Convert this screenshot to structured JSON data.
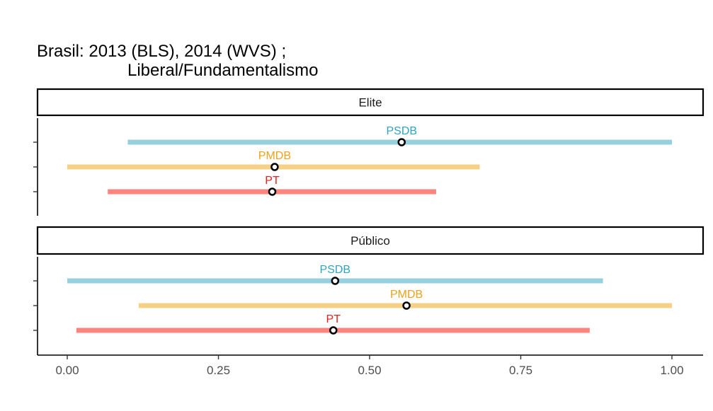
{
  "chart_data": {
    "type": "dot-range",
    "title_line1": "Brasil: 2013 (BLS), 2014 (WVS) ;",
    "title_line2": "Liberal/Fundamentalismo",
    "xlim": [
      0,
      1
    ],
    "x_ticks": [
      {
        "value": 0,
        "label": "0.00"
      },
      {
        "value": 0.25,
        "label": "0.25"
      },
      {
        "value": 0.5,
        "label": "0.50"
      },
      {
        "value": 0.75,
        "label": "0.75"
      },
      {
        "value": 1,
        "label": "1.00"
      }
    ],
    "panels": [
      {
        "label": "Elite",
        "series": [
          {
            "name": "PSDB",
            "low": 0.1,
            "high": 1.0,
            "point": 0.553,
            "color": "#96d0df",
            "label_color": "#2fa4bd"
          },
          {
            "name": "PMDB",
            "low": 0.0,
            "high": 0.682,
            "point": 0.343,
            "color": "#f6d185",
            "label_color": "#f0a11a"
          },
          {
            "name": "PT",
            "low": 0.067,
            "high": 0.61,
            "point": 0.339,
            "color": "#fb847c",
            "label_color": "#e8211a"
          }
        ]
      },
      {
        "label": "Público",
        "series": [
          {
            "name": "PSDB",
            "low": 0.0,
            "high": 0.886,
            "point": 0.443,
            "color": "#96d0df",
            "label_color": "#2fa4bd"
          },
          {
            "name": "PMDB",
            "low": 0.118,
            "high": 1.0,
            "point": 0.561,
            "color": "#f6d185",
            "label_color": "#f0a11a"
          },
          {
            "name": "PT",
            "low": 0.015,
            "high": 0.864,
            "point": 0.44,
            "color": "#fb847c",
            "label_color": "#e8211a"
          }
        ]
      }
    ]
  }
}
